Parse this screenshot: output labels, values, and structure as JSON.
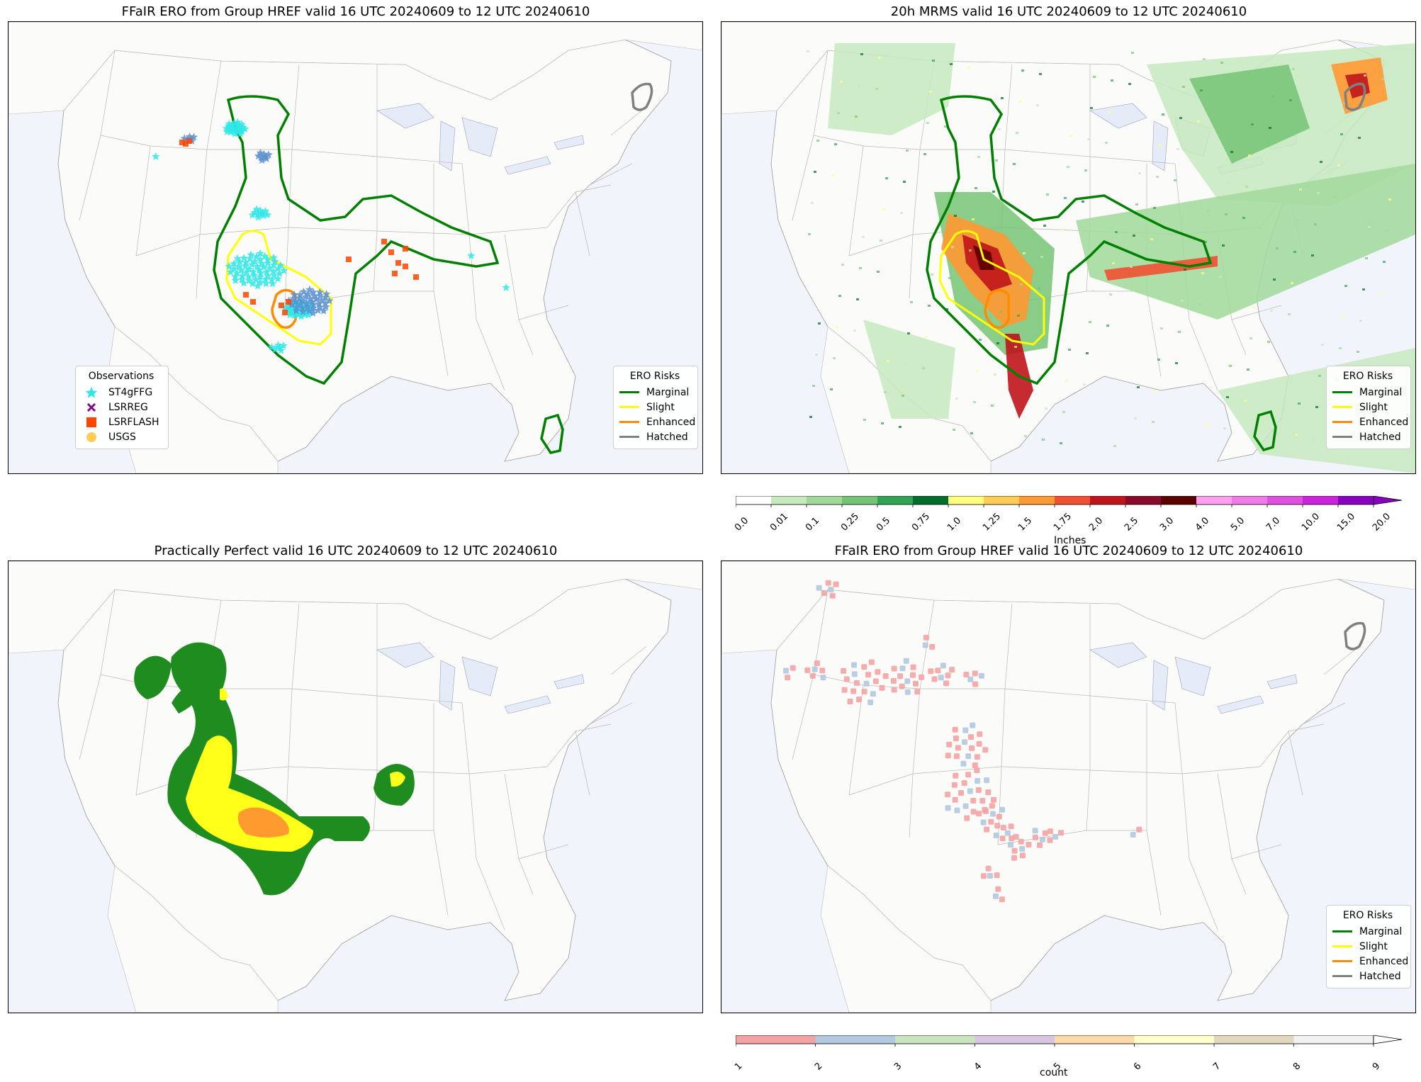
{
  "panels": [
    {
      "id": "tl",
      "title": "FFaIR ERO from Group HREF valid 16 UTC 20240609 to 12 UTC 20240610"
    },
    {
      "id": "tr",
      "title": "20h MRMS valid 16 UTC 20240609 to 12 UTC 20240610"
    },
    {
      "id": "bl",
      "title": "Practically Perfect valid 16 UTC 20240609 to 12 UTC 20240610"
    },
    {
      "id": "br",
      "title": "FFaIR ERO from Group HREF valid 16 UTC 20240609 to 12 UTC 20240610"
    }
  ],
  "observations_legend": {
    "title": "Observations",
    "items": [
      {
        "label": "ST4gFFG",
        "color": "#2ee6e6",
        "icon": "star-icon"
      },
      {
        "label": "LSRREG",
        "color": "#8b008b",
        "icon": "x-icon"
      },
      {
        "label": "LSRFLASH",
        "color": "#ff4500",
        "icon": "square-icon"
      },
      {
        "label": "USGS",
        "color": "#ffcc55",
        "icon": "circle-icon"
      }
    ]
  },
  "ero_legend": {
    "title": "ERO Risks",
    "items": [
      {
        "label": "Marginal",
        "color": "#008000"
      },
      {
        "label": "Slight",
        "color": "#ffff00"
      },
      {
        "label": "Enhanced",
        "color": "#ff8c00"
      },
      {
        "label": "Hatched",
        "color": "#808080"
      }
    ]
  },
  "colorbar_precip": {
    "label": "Inches",
    "ticks": [
      "0.0",
      "0.01",
      "0.1",
      "0.25",
      "0.5",
      "0.75",
      "1.0",
      "1.25",
      "1.5",
      "1.75",
      "2.0",
      "2.5",
      "3.0",
      "4.0",
      "5.0",
      "7.0",
      "10.0",
      "15.0",
      "20.0"
    ],
    "colors": [
      "#ffffff",
      "#c7e9c0",
      "#a1d99b",
      "#74c476",
      "#31a354",
      "#006d2c",
      "#ffff80",
      "#ffcc55",
      "#ff9933",
      "#f05030",
      "#c0141c",
      "#8b0a2a",
      "#5a0000",
      "#ffa0ee",
      "#f07ae8",
      "#e050e0",
      "#cc22dd",
      "#8a00c0"
    ]
  },
  "colorbar_count": {
    "label": "count",
    "ticks": [
      "1",
      "2",
      "3",
      "4",
      "5",
      "6",
      "7",
      "8",
      "9"
    ],
    "colors": [
      "#f4a3a3",
      "#b3c9e0",
      "#c8e5c0",
      "#d9c5e3",
      "#fcd9a8",
      "#ffffcc",
      "#e3d7c0",
      "#f2f2f2"
    ]
  }
}
